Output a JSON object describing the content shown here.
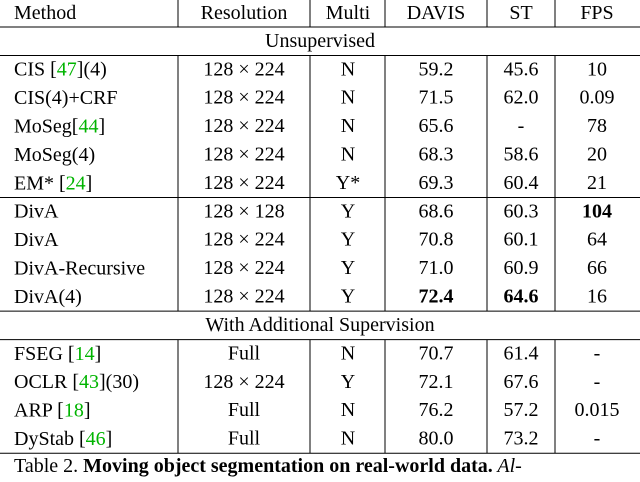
{
  "header": [
    "Method",
    "Resolution",
    "Multi",
    "DAVIS",
    "ST",
    "FPS"
  ],
  "sections": [
    {
      "title": "Unsupervised",
      "groups": [
        [
          {
            "method": [
              {
                "text": "CIS ["
              },
              {
                "text": "47",
                "ref": true
              },
              {
                "text": "](4)"
              }
            ],
            "cells": [
              "128 × 224",
              "N",
              "59.2",
              "45.6",
              "10"
            ],
            "bold": []
          },
          {
            "method": [
              {
                "text": "CIS(4)+CRF"
              }
            ],
            "cells": [
              "128 × 224",
              "N",
              "71.5",
              "62.0",
              "0.09"
            ],
            "bold": []
          },
          {
            "method": [
              {
                "text": "MoSeg["
              },
              {
                "text": "44",
                "ref": true
              },
              {
                "text": "]"
              }
            ],
            "cells": [
              "128 × 224",
              "N",
              "65.6",
              "-",
              "78"
            ],
            "bold": []
          },
          {
            "method": [
              {
                "text": "MoSeg(4)"
              }
            ],
            "cells": [
              "128 × 224",
              "N",
              "68.3",
              "58.6",
              "20"
            ],
            "bold": []
          },
          {
            "method": [
              {
                "text": "EM* ["
              },
              {
                "text": "24",
                "ref": true
              },
              {
                "text": "]"
              }
            ],
            "cells": [
              "128 × 224",
              "Y*",
              "69.3",
              "60.4",
              "21"
            ],
            "bold": []
          }
        ],
        [
          {
            "method": [
              {
                "text": "DivA"
              }
            ],
            "cells": [
              "128 × 128",
              "Y",
              "68.6",
              "60.3",
              "104"
            ],
            "bold": [
              4
            ]
          },
          {
            "method": [
              {
                "text": "DivA"
              }
            ],
            "cells": [
              "128 × 224",
              "Y",
              "70.8",
              "60.1",
              "64"
            ],
            "bold": []
          },
          {
            "method": [
              {
                "text": "DivA-Recursive"
              }
            ],
            "cells": [
              "128 × 224",
              "Y",
              "71.0",
              "60.9",
              "66"
            ],
            "bold": []
          },
          {
            "method": [
              {
                "text": "DivA(4)"
              }
            ],
            "cells": [
              "128 × 224",
              "Y",
              "72.4",
              "64.6",
              "16"
            ],
            "bold": [
              2,
              3
            ]
          }
        ]
      ]
    },
    {
      "title": "With Additional Supervision",
      "groups": [
        [
          {
            "method": [
              {
                "text": "FSEG ["
              },
              {
                "text": "14",
                "ref": true
              },
              {
                "text": "]"
              }
            ],
            "cells": [
              "Full",
              "N",
              "70.7",
              "61.4",
              "-"
            ],
            "bold": []
          },
          {
            "method": [
              {
                "text": "OCLR ["
              },
              {
                "text": "43",
                "ref": true
              },
              {
                "text": "](30)"
              }
            ],
            "cells": [
              "128 × 224",
              "Y",
              "72.1",
              "67.6",
              "-"
            ],
            "bold": []
          },
          {
            "method": [
              {
                "text": "ARP ["
              },
              {
                "text": "18",
                "ref": true
              },
              {
                "text": "]"
              }
            ],
            "cells": [
              "Full",
              "N",
              "76.2",
              "57.2",
              "0.015"
            ],
            "bold": []
          },
          {
            "method": [
              {
                "text": "DyStab ["
              },
              {
                "text": "46",
                "ref": true
              },
              {
                "text": "]"
              }
            ],
            "cells": [
              "Full",
              "N",
              "80.0",
              "73.2",
              "-"
            ],
            "bold": []
          }
        ]
      ]
    }
  ],
  "caption": [
    {
      "text": "Table 2. "
    },
    {
      "text": "Moving object segmentation on real-world data.",
      "bold": true
    },
    {
      "text": " Al-",
      "italic": true
    }
  ]
}
